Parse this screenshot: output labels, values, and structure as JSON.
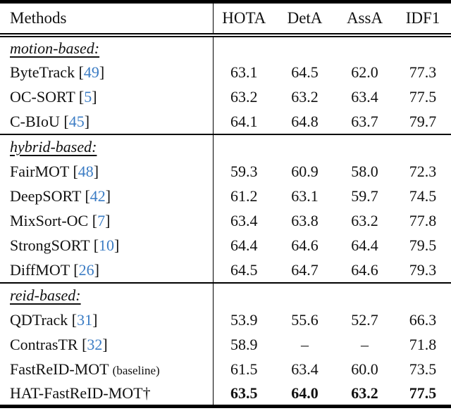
{
  "colors": {
    "citation_link": "#3b7cc4",
    "text": "#111111",
    "rule": "#000000"
  },
  "table": {
    "headers": [
      "Methods",
      "HOTA",
      "DetA",
      "AssA",
      "IDF1"
    ],
    "dash": "–",
    "dagger": "†",
    "sections": [
      {
        "label": "motion-based:",
        "rows": [
          {
            "name": "ByteTrack",
            "cite": "49",
            "values": [
              "63.1",
              "64.5",
              "62.0",
              "77.3"
            ]
          },
          {
            "name": "OC-SORT",
            "cite": "5",
            "values": [
              "63.2",
              "63.2",
              "63.4",
              "77.5"
            ]
          },
          {
            "name": "C-BIoU",
            "cite": "45",
            "values": [
              "64.1",
              "64.8",
              "63.7",
              "79.7"
            ]
          }
        ]
      },
      {
        "label": "hybrid-based:",
        "rows": [
          {
            "name": "FairMOT",
            "cite": "48",
            "values": [
              "59.3",
              "60.9",
              "58.0",
              "72.3"
            ]
          },
          {
            "name": "DeepSORT",
            "cite": "42",
            "values": [
              "61.2",
              "63.1",
              "59.7",
              "74.5"
            ]
          },
          {
            "name": "MixSort-OC",
            "cite": "7",
            "values": [
              "63.4",
              "63.8",
              "63.2",
              "77.8"
            ]
          },
          {
            "name": "StrongSORT",
            "cite": "10",
            "values": [
              "64.4",
              "64.6",
              "64.4",
              "79.5"
            ]
          },
          {
            "name": "DiffMOT",
            "cite": "26",
            "values": [
              "64.5",
              "64.7",
              "64.6",
              "79.3"
            ]
          }
        ]
      },
      {
        "label": "reid-based:",
        "rows": [
          {
            "name": "QDTrack",
            "cite": "31",
            "values": [
              "53.9",
              "55.6",
              "52.7",
              "66.3"
            ]
          },
          {
            "name": "ContrasTR",
            "cite": "32",
            "values": [
              "58.9",
              "–",
              "–",
              "71.8"
            ]
          },
          {
            "name": "FastReID-MOT",
            "note": "(baseline)",
            "values": [
              "61.5",
              "63.4",
              "60.0",
              "73.5"
            ]
          },
          {
            "name": "HAT-FastReID-MOT",
            "dagger": true,
            "bold": true,
            "values": [
              "63.5",
              "64.0",
              "63.2",
              "77.5"
            ]
          }
        ]
      }
    ]
  }
}
